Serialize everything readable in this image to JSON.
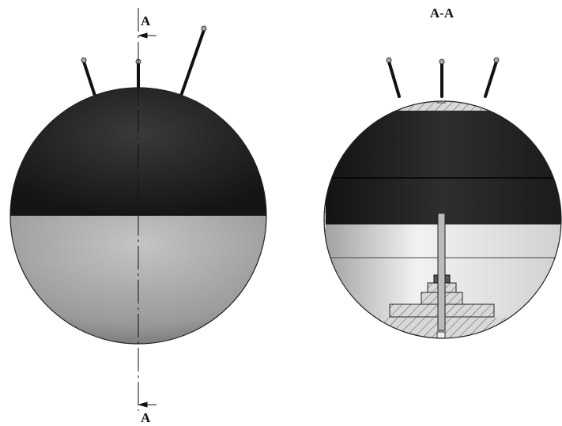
{
  "labels": {
    "section_top": "A",
    "section_bottom": "A",
    "view_title": "A-A"
  }
}
